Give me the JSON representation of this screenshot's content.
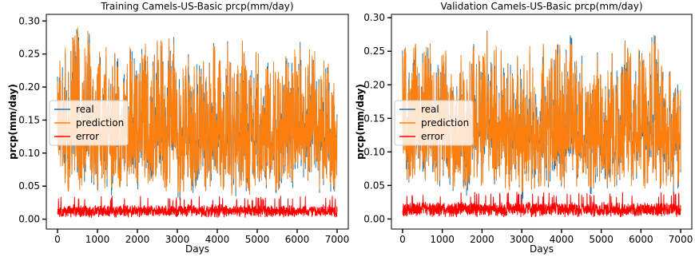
{
  "chart_data": [
    {
      "type": "line",
      "title": "Training  Camels-US-Basic prcp(mm/day)",
      "xlabel": "Days",
      "ylabel": "prcp(mm/day)",
      "xlim": [
        -280,
        7280
      ],
      "ylim": [
        -0.015,
        0.31
      ],
      "xticks": [
        0,
        1000,
        2000,
        3000,
        4000,
        5000,
        6000,
        7000
      ],
      "xtick_labels": [
        "0",
        "1000",
        "2000",
        "3000",
        "4000",
        "5000",
        "6000",
        "7000"
      ],
      "yticks": [
        0.0,
        0.05,
        0.1,
        0.15,
        0.2,
        0.25,
        0.3
      ],
      "ytick_labels": [
        "0.00",
        "0.05",
        "0.10",
        "0.15",
        "0.20",
        "0.25",
        "0.30"
      ],
      "legend_position": "center-left",
      "series": [
        {
          "name": "real",
          "color": "#1f77b4",
          "x": [
            0,
            500,
            1000,
            1500,
            2000,
            2500,
            3000,
            3500,
            4000,
            4500,
            5000,
            5500,
            6000,
            6500,
            7000
          ],
          "y_max": [
            0.265,
            0.29,
            0.285,
            0.28,
            0.27,
            0.275,
            0.305,
            0.275,
            0.265,
            0.27,
            0.275,
            0.27,
            0.265,
            0.26,
            0.24
          ],
          "y_min": [
            0.035,
            0.03,
            0.035,
            0.04,
            0.03,
            0.035,
            0.03,
            0.035,
            0.03,
            0.025,
            0.03,
            0.035,
            0.03,
            0.035,
            0.035
          ],
          "y_mean": [
            0.125,
            0.13,
            0.12,
            0.125,
            0.12,
            0.125,
            0.13,
            0.12,
            0.125,
            0.12,
            0.125,
            0.12,
            0.125,
            0.12,
            0.12
          ]
        },
        {
          "name": "prediction",
          "color": "#ff7f0e",
          "x": [
            0,
            500,
            1000,
            1500,
            2000,
            2500,
            3000,
            3500,
            4000,
            4500,
            5000,
            5500,
            6000,
            6500,
            7000
          ],
          "y_max": [
            0.24,
            0.29,
            0.28,
            0.28,
            0.27,
            0.27,
            0.308,
            0.27,
            0.26,
            0.27,
            0.27,
            0.265,
            0.26,
            0.255,
            0.24
          ],
          "y_min": [
            0.045,
            0.04,
            0.045,
            0.05,
            0.04,
            0.045,
            0.04,
            0.045,
            0.04,
            0.035,
            0.04,
            0.045,
            0.04,
            0.045,
            0.045
          ],
          "y_mean": [
            0.125,
            0.13,
            0.12,
            0.125,
            0.12,
            0.125,
            0.13,
            0.12,
            0.125,
            0.12,
            0.125,
            0.12,
            0.125,
            0.12,
            0.12
          ]
        },
        {
          "name": "error",
          "color": "#ff0000",
          "x": [
            0,
            7000
          ],
          "y_max": [
            0.035,
            0.035
          ],
          "y_min": [
            0.0,
            0.0
          ],
          "y_mean": [
            0.012,
            0.012
          ]
        }
      ]
    },
    {
      "type": "line",
      "title": "Validation  Camels-US-Basic prcp(mm/day)",
      "xlabel": "Days",
      "ylabel": "prcp(mm/day)",
      "xlim": [
        -280,
        7280
      ],
      "ylim": [
        -0.015,
        0.305
      ],
      "xticks": [
        0,
        1000,
        2000,
        3000,
        4000,
        5000,
        6000,
        7000
      ],
      "xtick_labels": [
        "0",
        "1000",
        "2000",
        "3000",
        "4000",
        "5000",
        "6000",
        "7000"
      ],
      "yticks": [
        0.0,
        0.05,
        0.1,
        0.15,
        0.2,
        0.25,
        0.3
      ],
      "ytick_labels": [
        "0.00",
        "0.05",
        "0.10",
        "0.15",
        "0.20",
        "0.25",
        "0.30"
      ],
      "legend_position": "center-left",
      "series": [
        {
          "name": "real",
          "color": "#1f77b4",
          "x": [
            0,
            500,
            1000,
            1500,
            2000,
            2500,
            3000,
            3500,
            4000,
            4500,
            5000,
            5500,
            6000,
            6500,
            7000
          ],
          "y_max": [
            0.26,
            0.28,
            0.27,
            0.265,
            0.275,
            0.28,
            0.275,
            0.265,
            0.27,
            0.26,
            0.265,
            0.27,
            0.265,
            0.28,
            0.245
          ],
          "y_min": [
            0.04,
            0.035,
            0.04,
            0.035,
            0.04,
            0.035,
            0.03,
            0.04,
            0.035,
            0.04,
            0.035,
            0.04,
            0.035,
            0.04,
            0.04
          ],
          "y_mean": [
            0.125,
            0.13,
            0.125,
            0.12,
            0.125,
            0.13,
            0.125,
            0.12,
            0.125,
            0.12,
            0.125,
            0.12,
            0.125,
            0.125,
            0.12
          ]
        },
        {
          "name": "prediction",
          "color": "#ff7f0e",
          "x": [
            0,
            500,
            1000,
            1500,
            2000,
            2500,
            3000,
            3500,
            4000,
            4500,
            5000,
            5500,
            6000,
            6500,
            7000
          ],
          "y_max": [
            0.25,
            0.28,
            0.27,
            0.26,
            0.275,
            0.29,
            0.27,
            0.26,
            0.265,
            0.255,
            0.26,
            0.265,
            0.26,
            0.275,
            0.245
          ],
          "y_min": [
            0.05,
            0.045,
            0.05,
            0.045,
            0.05,
            0.045,
            0.04,
            0.05,
            0.045,
            0.05,
            0.045,
            0.05,
            0.045,
            0.05,
            0.05
          ],
          "y_mean": [
            0.125,
            0.13,
            0.125,
            0.12,
            0.125,
            0.13,
            0.125,
            0.12,
            0.125,
            0.12,
            0.125,
            0.12,
            0.125,
            0.125,
            0.12
          ]
        },
        {
          "name": "error",
          "color": "#ff0000",
          "x": [
            0,
            7000
          ],
          "y_max": [
            0.04,
            0.04
          ],
          "y_min": [
            0.0,
            0.0
          ],
          "y_mean": [
            0.014,
            0.014
          ]
        }
      ]
    }
  ]
}
